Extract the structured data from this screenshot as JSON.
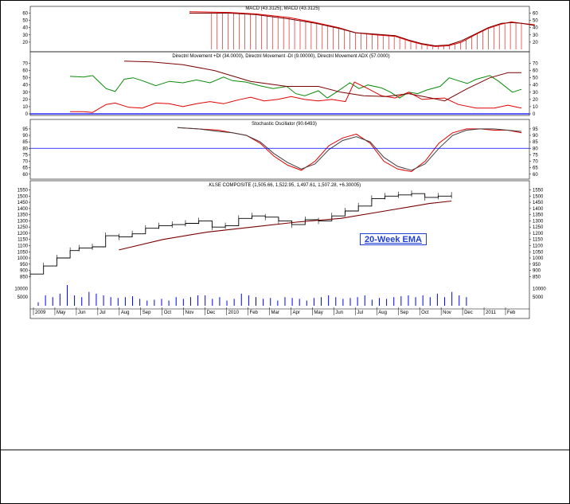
{
  "colors": {
    "red": "#e00000",
    "darkred": "#7a0000",
    "green": "#0a8a0a",
    "blue": "#0000ff",
    "black": "#000000",
    "darkgray": "#404040"
  },
  "annotation": "20-Week EMA",
  "chart_data": [
    {
      "type": "line",
      "title": "MACD (43.3125), MACD (43.3125)",
      "ylim": [
        10,
        65
      ],
      "yticks": [
        "60",
        "50",
        "40",
        "30",
        "20"
      ],
      "series": [
        {
          "color": "red",
          "values": [
            [
              0.0,
              62
            ],
            [
              0.12,
              61
            ],
            [
              0.2,
              59
            ],
            [
              0.3,
              54
            ],
            [
              0.38,
              47
            ],
            [
              0.45,
              40
            ],
            [
              0.5,
              33
            ],
            [
              0.56,
              30
            ],
            [
              0.62,
              28
            ],
            [
              0.66,
              22
            ],
            [
              0.7,
              17
            ],
            [
              0.74,
              14
            ],
            [
              0.78,
              15
            ],
            [
              0.82,
              20
            ],
            [
              0.86,
              30
            ],
            [
              0.9,
              39
            ],
            [
              0.94,
              45
            ],
            [
              0.97,
              48
            ],
            [
              1.0,
              46
            ],
            [
              1.04,
              44
            ]
          ]
        },
        {
          "color": "darkred",
          "values": [
            [
              0.0,
              60
            ],
            [
              0.12,
              60
            ],
            [
              0.2,
              58
            ],
            [
              0.3,
              52
            ],
            [
              0.38,
              46
            ],
            [
              0.45,
              39
            ],
            [
              0.5,
              33
            ],
            [
              0.56,
              31
            ],
            [
              0.62,
              29
            ],
            [
              0.66,
              23
            ],
            [
              0.7,
              18
            ],
            [
              0.74,
              15
            ],
            [
              0.78,
              16
            ],
            [
              0.82,
              22
            ],
            [
              0.86,
              31
            ],
            [
              0.9,
              40
            ],
            [
              0.94,
              46
            ],
            [
              0.97,
              47
            ],
            [
              1.0,
              46
            ],
            [
              1.04,
              43
            ]
          ]
        }
      ]
    },
    {
      "type": "line",
      "title": "Directnl Movement +DI (34.0000), Directnl Movement -DI (9.00000), Directnl Movement ADX (57.0000)",
      "ylim": [
        0,
        75
      ],
      "yticks": [
        "70",
        "60",
        "50",
        "40",
        "30",
        "20",
        "10",
        "0"
      ],
      "series": [
        {
          "color": "green",
          "values": [
            [
              0.0,
              52
            ],
            [
              0.03,
              51
            ],
            [
              0.05,
              53
            ],
            [
              0.08,
              35
            ],
            [
              0.1,
              31
            ],
            [
              0.12,
              48
            ],
            [
              0.14,
              50
            ],
            [
              0.16,
              46
            ],
            [
              0.19,
              39
            ],
            [
              0.22,
              45
            ],
            [
              0.25,
              43
            ],
            [
              0.28,
              47
            ],
            [
              0.31,
              43
            ],
            [
              0.34,
              51
            ],
            [
              0.36,
              46
            ],
            [
              0.39,
              44
            ],
            [
              0.42,
              39
            ],
            [
              0.45,
              35
            ],
            [
              0.48,
              38
            ],
            [
              0.5,
              28
            ],
            [
              0.52,
              25
            ],
            [
              0.55,
              32
            ],
            [
              0.57,
              22
            ],
            [
              0.59,
              30
            ],
            [
              0.62,
              43
            ],
            [
              0.64,
              35
            ],
            [
              0.66,
              40
            ],
            [
              0.69,
              36
            ],
            [
              0.71,
              30
            ],
            [
              0.73,
              22
            ],
            [
              0.75,
              30
            ],
            [
              0.77,
              28
            ],
            [
              0.79,
              33
            ],
            [
              0.82,
              38
            ],
            [
              0.84,
              50
            ],
            [
              0.86,
              46
            ],
            [
              0.88,
              42
            ],
            [
              0.9,
              48
            ],
            [
              0.93,
              53
            ],
            [
              0.95,
              45
            ],
            [
              0.98,
              30
            ],
            [
              1.0,
              34
            ]
          ]
        },
        {
          "color": "red",
          "values": [
            [
              0.0,
              3
            ],
            [
              0.03,
              3
            ],
            [
              0.05,
              2
            ],
            [
              0.08,
              13
            ],
            [
              0.1,
              15
            ],
            [
              0.13,
              9
            ],
            [
              0.16,
              8
            ],
            [
              0.19,
              15
            ],
            [
              0.22,
              14
            ],
            [
              0.25,
              10
            ],
            [
              0.28,
              14
            ],
            [
              0.31,
              17
            ],
            [
              0.34,
              14
            ],
            [
              0.37,
              19
            ],
            [
              0.4,
              23
            ],
            [
              0.43,
              18
            ],
            [
              0.46,
              20
            ],
            [
              0.49,
              24
            ],
            [
              0.52,
              20
            ],
            [
              0.55,
              18
            ],
            [
              0.58,
              20
            ],
            [
              0.61,
              17
            ],
            [
              0.63,
              44
            ],
            [
              0.66,
              35
            ],
            [
              0.69,
              25
            ],
            [
              0.72,
              22
            ],
            [
              0.75,
              30
            ],
            [
              0.78,
              20
            ],
            [
              0.8,
              21
            ],
            [
              0.83,
              22
            ],
            [
              0.86,
              13
            ],
            [
              0.9,
              8
            ],
            [
              0.94,
              8
            ],
            [
              0.97,
              12
            ],
            [
              1.0,
              8
            ]
          ]
        },
        {
          "color": "darkred",
          "values": [
            [
              0.12,
              73
            ],
            [
              0.18,
              72
            ],
            [
              0.25,
              68
            ],
            [
              0.32,
              60
            ],
            [
              0.4,
              45
            ],
            [
              0.48,
              38
            ],
            [
              0.55,
              38
            ],
            [
              0.6,
              30
            ],
            [
              0.65,
              25
            ],
            [
              0.7,
              24
            ],
            [
              0.75,
              28
            ],
            [
              0.8,
              22
            ],
            [
              0.83,
              18
            ],
            [
              0.88,
              35
            ],
            [
              0.93,
              50
            ],
            [
              0.97,
              57
            ],
            [
              1.0,
              57
            ]
          ]
        }
      ],
      "reference_line": {
        "value": 0,
        "color": "blue"
      }
    },
    {
      "type": "line",
      "title": "Stochastic Oscillator (90.6493)",
      "ylim": [
        58,
        98
      ],
      "yticks": [
        "95",
        "90",
        "85",
        "80",
        "75",
        "70",
        "65",
        "60"
      ],
      "series": [
        {
          "color": "red",
          "values": [
            [
              0.0,
              96
            ],
            [
              0.06,
              95
            ],
            [
              0.12,
              94
            ],
            [
              0.16,
              92
            ],
            [
              0.2,
              90
            ],
            [
              0.24,
              84
            ],
            [
              0.28,
              74
            ],
            [
              0.32,
              67
            ],
            [
              0.36,
              63
            ],
            [
              0.4,
              70
            ],
            [
              0.44,
              82
            ],
            [
              0.48,
              88
            ],
            [
              0.52,
              91
            ],
            [
              0.56,
              84
            ],
            [
              0.6,
              70
            ],
            [
              0.64,
              64
            ],
            [
              0.68,
              62
            ],
            [
              0.72,
              70
            ],
            [
              0.76,
              84
            ],
            [
              0.8,
              92
            ],
            [
              0.84,
              95
            ],
            [
              0.88,
              95
            ],
            [
              0.92,
              94
            ],
            [
              0.96,
              94
            ],
            [
              1.0,
              92
            ]
          ]
        },
        {
          "color": "darkgray",
          "values": [
            [
              0.0,
              96
            ],
            [
              0.06,
              95
            ],
            [
              0.12,
              93
            ],
            [
              0.16,
              92
            ],
            [
              0.2,
              90
            ],
            [
              0.24,
              85
            ],
            [
              0.28,
              76
            ],
            [
              0.32,
              69
            ],
            [
              0.36,
              64
            ],
            [
              0.4,
              68
            ],
            [
              0.44,
              79
            ],
            [
              0.48,
              86
            ],
            [
              0.52,
              89
            ],
            [
              0.56,
              85
            ],
            [
              0.6,
              73
            ],
            [
              0.64,
              66
            ],
            [
              0.68,
              63
            ],
            [
              0.72,
              68
            ],
            [
              0.76,
              80
            ],
            [
              0.8,
              90
            ],
            [
              0.84,
              94
            ],
            [
              0.88,
              95
            ],
            [
              0.92,
              95
            ],
            [
              0.96,
              94
            ],
            [
              1.0,
              93
            ]
          ]
        }
      ],
      "reference_line": {
        "value": 80,
        "color": "blue"
      }
    },
    {
      "type": "line",
      "title": ".KLSE COMPOSITE (1,505.66, 1,522.95, 1,497.61, 1,507.28, +6.30005)",
      "ylim": [
        820,
        1560
      ],
      "yticks": [
        "1550",
        "1500",
        "1450",
        "1400",
        "1350",
        "1300",
        "1250",
        "1200",
        "1150",
        "1100",
        "1050",
        "1000",
        "950",
        "900",
        "850"
      ],
      "series": [
        {
          "name": "price",
          "color": "black",
          "values": [
            [
              0.0,
              870
            ],
            [
              0.03,
              935
            ],
            [
              0.06,
              1000
            ],
            [
              0.09,
              1060
            ],
            [
              0.11,
              1080
            ],
            [
              0.14,
              1090
            ],
            [
              0.17,
              1180
            ],
            [
              0.2,
              1170
            ],
            [
              0.23,
              1195
            ],
            [
              0.26,
              1240
            ],
            [
              0.29,
              1260
            ],
            [
              0.32,
              1270
            ],
            [
              0.35,
              1280
            ],
            [
              0.38,
              1300
            ],
            [
              0.41,
              1250
            ],
            [
              0.44,
              1260
            ],
            [
              0.47,
              1320
            ],
            [
              0.5,
              1340
            ],
            [
              0.53,
              1330
            ],
            [
              0.56,
              1300
            ],
            [
              0.59,
              1270
            ],
            [
              0.62,
              1310
            ],
            [
              0.65,
              1300
            ],
            [
              0.68,
              1340
            ],
            [
              0.71,
              1380
            ],
            [
              0.74,
              1420
            ],
            [
              0.77,
              1480
            ],
            [
              0.8,
              1500
            ],
            [
              0.83,
              1510
            ],
            [
              0.86,
              1520
            ],
            [
              0.89,
              1490
            ],
            [
              0.92,
              1500
            ],
            [
              0.95,
              1507
            ]
          ]
        },
        {
          "name": "20-Week EMA",
          "color": "darkred",
          "values": [
            [
              0.2,
              1065
            ],
            [
              0.3,
              1150
            ],
            [
              0.4,
              1210
            ],
            [
              0.5,
              1250
            ],
            [
              0.6,
              1290
            ],
            [
              0.7,
              1320
            ],
            [
              0.8,
              1380
            ],
            [
              0.9,
              1440
            ],
            [
              0.95,
              1460
            ]
          ]
        }
      ],
      "volume": {
        "ylim": [
          0,
          12000
        ],
        "yticks": [
          "10000",
          "5000"
        ],
        "values": [
          2000,
          6000,
          5000,
          7000,
          12000,
          6000,
          5000,
          8000,
          7000,
          6000,
          5000,
          4500,
          5000,
          5500,
          4000,
          3000,
          3500,
          4000,
          3000,
          5000,
          4000,
          5000,
          6000,
          6000,
          4000,
          5000,
          3000,
          4000,
          7000,
          6000,
          5000,
          4000,
          4500,
          3000,
          5000,
          4500,
          4000,
          3000,
          4500,
          5000,
          6000,
          5000,
          4000,
          4500,
          5000,
          6000,
          3500,
          4500,
          4000,
          5000,
          5500,
          6000,
          5000,
          6000,
          5000,
          7000,
          5000,
          8000,
          6000,
          5000
        ]
      },
      "xticks": [
        "2009",
        "May",
        "Jun",
        "Jul",
        "Aug",
        "Sep",
        "Oct",
        "Nov",
        "Dec",
        "2010",
        "Feb",
        "Mar",
        "Apr",
        "May",
        "Jun",
        "Jul",
        "Aug",
        "Sep",
        "Oct",
        "Nov",
        "Dec",
        "2011",
        "Feb"
      ]
    }
  ]
}
